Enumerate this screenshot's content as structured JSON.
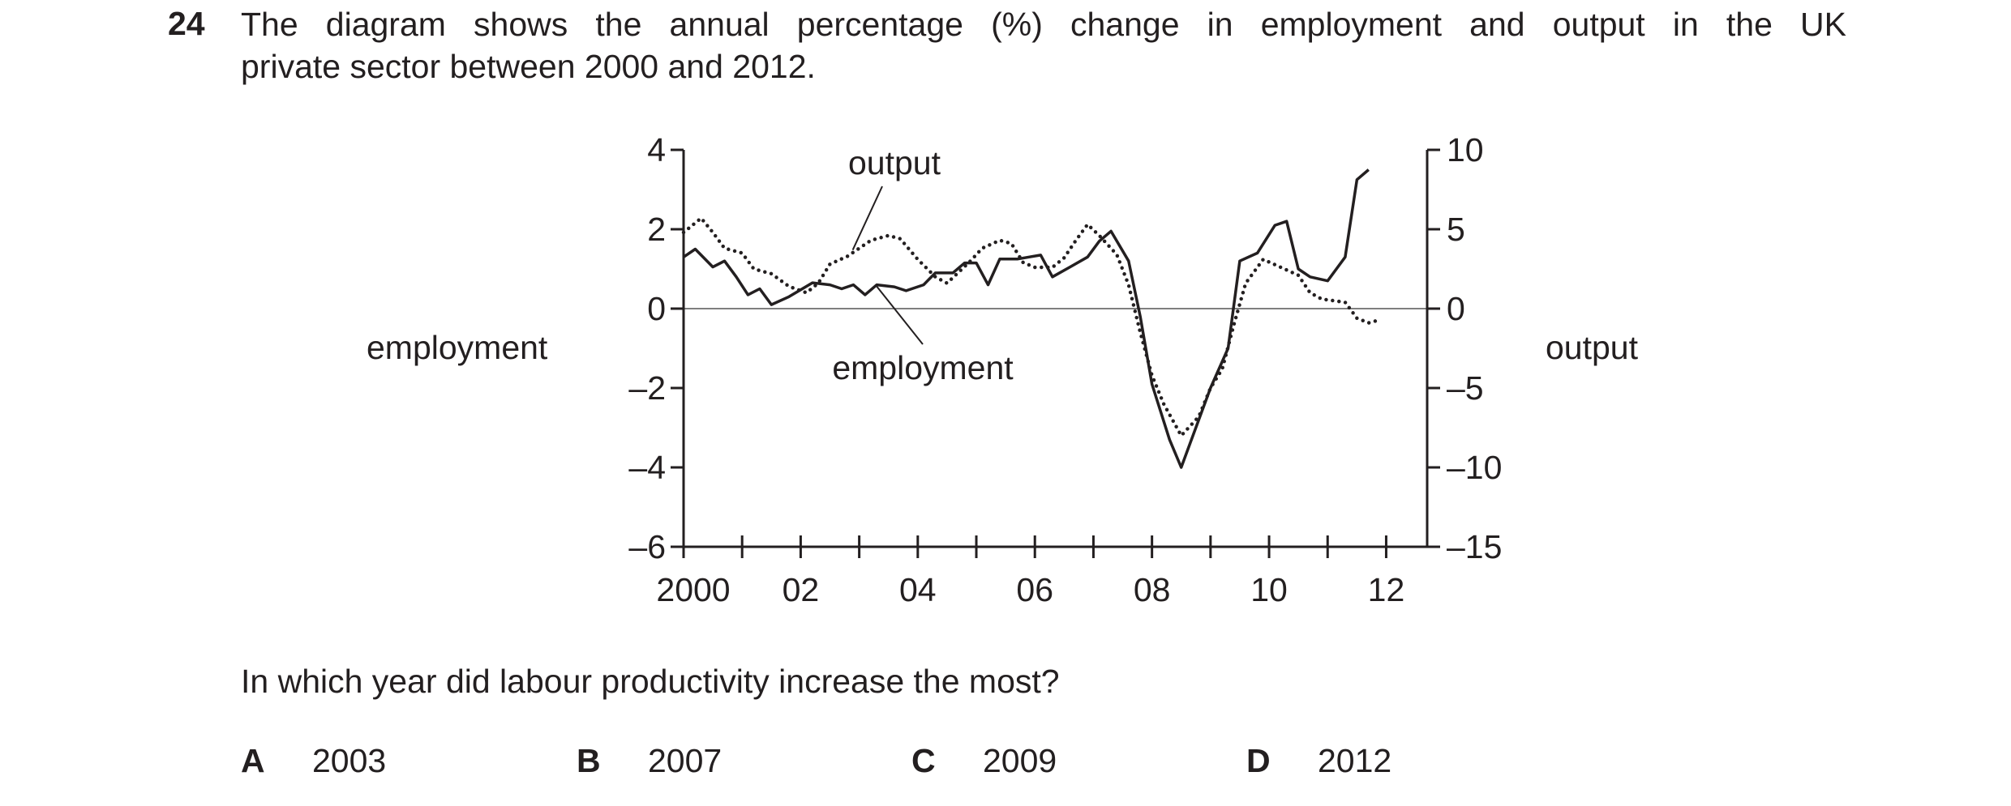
{
  "question": {
    "number": "24",
    "text_line1": "The diagram shows the annual percentage (%) change in employment and output in the UK",
    "text_line2": "private sector between 2000 and 2012.",
    "prompt": "In which year did labour productivity increase the most?",
    "options": [
      {
        "letter": "A",
        "value": "2003"
      },
      {
        "letter": "B",
        "value": "2007"
      },
      {
        "letter": "C",
        "value": "2009"
      },
      {
        "letter": "D",
        "value": "2012"
      }
    ]
  },
  "chart_data": {
    "type": "line",
    "left_axis_label": "employment",
    "right_axis_label": "output",
    "left_ylim": [
      -6,
      4
    ],
    "left_ticks": [
      "4",
      "2",
      "0",
      "–2",
      "–4",
      "–6"
    ],
    "right_ylim": [
      -15,
      10
    ],
    "right_ticks": [
      "10",
      "5",
      "0",
      "–5",
      "–10",
      "–15"
    ],
    "xlim": [
      2000,
      2012.7
    ],
    "x_tick_labels": [
      {
        "x": 2000,
        "label": "2000"
      },
      {
        "x": 2002,
        "label": "02"
      },
      {
        "x": 2004,
        "label": "04"
      },
      {
        "x": 2006,
        "label": "06"
      },
      {
        "x": 2008,
        "label": "08"
      },
      {
        "x": 2010,
        "label": "10"
      },
      {
        "x": 2012,
        "label": "12"
      }
    ],
    "annotations": [
      {
        "text": "output",
        "series": "output"
      },
      {
        "text": "employment",
        "series": "employment"
      }
    ],
    "series": [
      {
        "name": "employment",
        "axis": "left",
        "style": "solid",
        "points": [
          [
            2000.0,
            1.3
          ],
          [
            2000.2,
            1.5
          ],
          [
            2000.5,
            1.05
          ],
          [
            2000.7,
            1.2
          ],
          [
            2000.9,
            0.8
          ],
          [
            2001.1,
            0.35
          ],
          [
            2001.3,
            0.5
          ],
          [
            2001.5,
            0.1
          ],
          [
            2001.8,
            0.3
          ],
          [
            2002.2,
            0.65
          ],
          [
            2002.5,
            0.6
          ],
          [
            2002.7,
            0.5
          ],
          [
            2002.9,
            0.6
          ],
          [
            2003.1,
            0.35
          ],
          [
            2003.3,
            0.6
          ],
          [
            2003.6,
            0.55
          ],
          [
            2003.8,
            0.45
          ],
          [
            2004.1,
            0.6
          ],
          [
            2004.3,
            0.9
          ],
          [
            2004.6,
            0.9
          ],
          [
            2004.8,
            1.15
          ],
          [
            2005.0,
            1.15
          ],
          [
            2005.2,
            0.6
          ],
          [
            2005.4,
            1.25
          ],
          [
            2005.7,
            1.25
          ],
          [
            2005.9,
            1.3
          ],
          [
            2006.1,
            1.35
          ],
          [
            2006.3,
            0.8
          ],
          [
            2006.6,
            1.05
          ],
          [
            2006.9,
            1.3
          ],
          [
            2007.1,
            1.7
          ],
          [
            2007.3,
            1.95
          ],
          [
            2007.6,
            1.2
          ],
          [
            2007.8,
            -0.2
          ],
          [
            2008.0,
            -1.9
          ],
          [
            2008.3,
            -3.3
          ],
          [
            2008.5,
            -4.0
          ],
          [
            2009.0,
            -2.0
          ],
          [
            2009.3,
            -1.0
          ],
          [
            2009.5,
            1.2
          ],
          [
            2009.8,
            1.4
          ],
          [
            2010.1,
            2.1
          ],
          [
            2010.3,
            2.2
          ],
          [
            2010.5,
            1.0
          ],
          [
            2010.7,
            0.8
          ],
          [
            2011.0,
            0.7
          ],
          [
            2011.3,
            1.3
          ],
          [
            2011.5,
            3.25
          ],
          [
            2011.7,
            3.5
          ]
        ]
      },
      {
        "name": "output",
        "axis": "right",
        "style": "dotted",
        "points": [
          [
            2000.0,
            4.8
          ],
          [
            2000.3,
            5.7
          ],
          [
            2000.5,
            4.8
          ],
          [
            2000.7,
            3.8
          ],
          [
            2001.0,
            3.5
          ],
          [
            2001.2,
            2.5
          ],
          [
            2001.5,
            2.2
          ],
          [
            2001.8,
            1.4
          ],
          [
            2002.1,
            1.0
          ],
          [
            2002.3,
            1.6
          ],
          [
            2002.5,
            2.8
          ],
          [
            2002.8,
            3.3
          ],
          [
            2003.0,
            3.8
          ],
          [
            2003.2,
            4.3
          ],
          [
            2003.5,
            4.6
          ],
          [
            2003.7,
            4.4
          ],
          [
            2004.0,
            3.1
          ],
          [
            2004.3,
            2.0
          ],
          [
            2004.5,
            1.6
          ],
          [
            2004.7,
            2.3
          ],
          [
            2004.9,
            3.0
          ],
          [
            2005.1,
            3.8
          ],
          [
            2005.4,
            4.3
          ],
          [
            2005.6,
            4.1
          ],
          [
            2005.8,
            2.9
          ],
          [
            2006.0,
            2.6
          ],
          [
            2006.3,
            2.6
          ],
          [
            2006.5,
            3.2
          ],
          [
            2006.7,
            4.3
          ],
          [
            2006.9,
            5.3
          ],
          [
            2007.1,
            4.6
          ],
          [
            2007.4,
            3.4
          ],
          [
            2007.6,
            1.5
          ],
          [
            2007.8,
            -1.5
          ],
          [
            2008.0,
            -4.2
          ],
          [
            2008.2,
            -6.0
          ],
          [
            2008.5,
            -8.0
          ],
          [
            2008.8,
            -6.8
          ],
          [
            2009.0,
            -5.0
          ],
          [
            2009.2,
            -3.8
          ],
          [
            2009.4,
            -1.0
          ],
          [
            2009.6,
            1.6
          ],
          [
            2009.9,
            3.1
          ],
          [
            2010.2,
            2.6
          ],
          [
            2010.5,
            2.1
          ],
          [
            2010.7,
            1.0
          ],
          [
            2010.9,
            0.6
          ],
          [
            2011.1,
            0.5
          ],
          [
            2011.3,
            0.4
          ],
          [
            2011.5,
            -0.6
          ],
          [
            2011.7,
            -0.9
          ],
          [
            2011.9,
            -0.7
          ]
        ]
      }
    ]
  }
}
